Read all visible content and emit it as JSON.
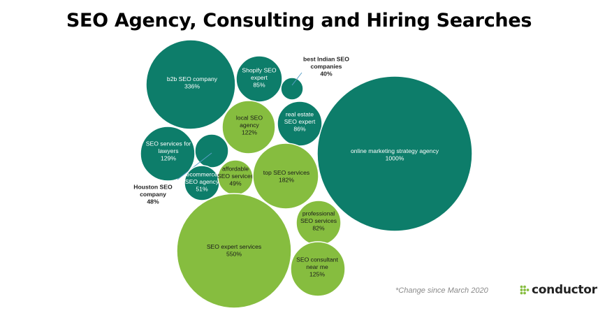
{
  "title": "SEO Agency, Consulting and Hiring Searches",
  "footnote": "*Change since March 2020",
  "brand": {
    "name": "conductor"
  },
  "colors": {
    "dark": "#0d7d6a",
    "light": "#86bd3f",
    "text_dark_bubble": "#ffffff",
    "text_light_bubble": "#1a1a1a",
    "logo": "#86bd3f"
  },
  "chart_data": {
    "type": "bubble",
    "value_unit": "% change since March 2020",
    "bubbles": [
      {
        "label": [
          "b2b SEO company"
        ],
        "value_label": "336%",
        "value": 336,
        "group": "dark"
      },
      {
        "label": [
          "Shopify SEO",
          "expert"
        ],
        "value_label": "85%",
        "value": 85,
        "group": "dark"
      },
      {
        "label": [
          "best Indian SEO",
          "companies"
        ],
        "value_label": "40%",
        "value": 40,
        "group": "dark"
      },
      {
        "label": [
          "local SEO",
          "agency"
        ],
        "value_label": "122%",
        "value": 122,
        "group": "light"
      },
      {
        "label": [
          "real estate",
          "SEO expert"
        ],
        "value_label": "86%",
        "value": 86,
        "group": "dark"
      },
      {
        "label": [
          "online marketing strategy agency"
        ],
        "value_label": "1000%",
        "value": 1000,
        "group": "dark"
      },
      {
        "label": [
          "SEO services for",
          "lawyers"
        ],
        "value_label": "129%",
        "value": 129,
        "group": "dark"
      },
      {
        "label": [
          "Houston SEO",
          "company"
        ],
        "value_label": "48%",
        "value": 48,
        "group": "dark"
      },
      {
        "label": [
          "ecommerce",
          "SEO agency"
        ],
        "value_label": "51%",
        "value": 51,
        "group": "dark"
      },
      {
        "label": [
          "affordable",
          "SEO services"
        ],
        "value_label": "49%",
        "value": 49,
        "group": "light"
      },
      {
        "label": [
          "top SEO services"
        ],
        "value_label": "182%",
        "value": 182,
        "group": "light"
      },
      {
        "label": [
          "professional",
          "SEO services"
        ],
        "value_label": "82%",
        "value": 82,
        "group": "light"
      },
      {
        "label": [
          "SEO expert services"
        ],
        "value_label": "550%",
        "value": 550,
        "group": "light"
      },
      {
        "label": [
          "SEO consultant",
          "near me"
        ],
        "value_label": "125%",
        "value": 125,
        "group": "light"
      }
    ]
  }
}
